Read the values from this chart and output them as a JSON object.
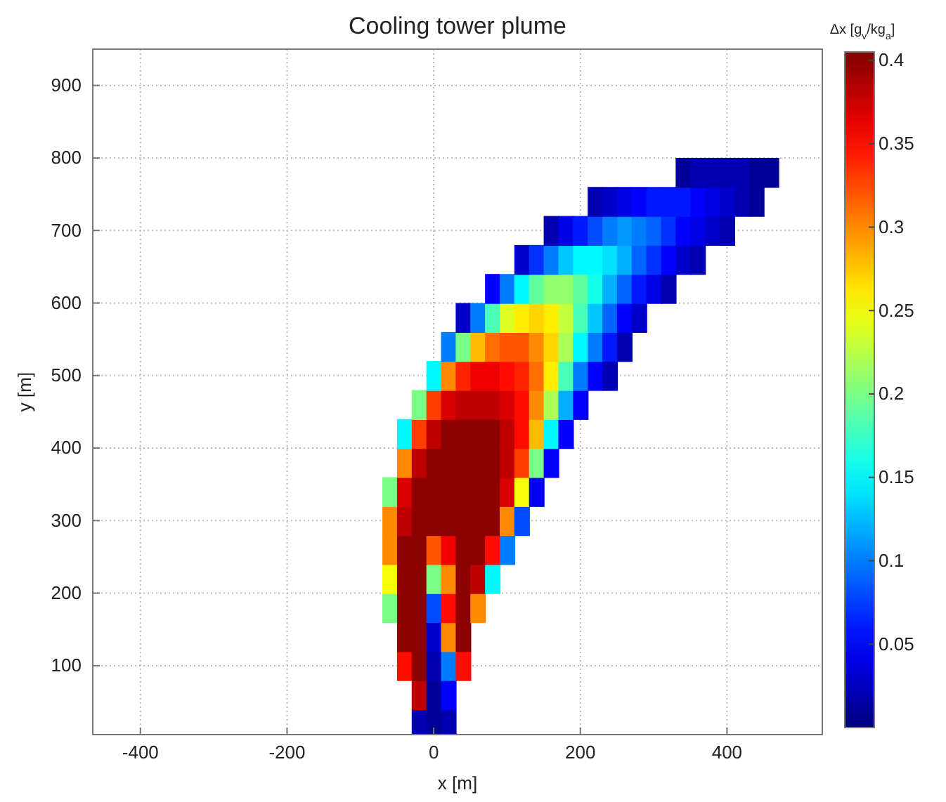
{
  "chart_data": {
    "type": "scatter",
    "title": "Cooling tower plume",
    "xlabel": "x [m]",
    "ylabel": "y [m]",
    "clabel": "Δx [g$_{v}$/kg$_{a}$]",
    "marker": "square",
    "grid": true,
    "xlim": [
      -465,
      530
    ],
    "xticks": [
      -400,
      -200,
      0,
      200,
      400
    ],
    "ylim": [
      5,
      950
    ],
    "yticks": [
      100,
      200,
      300,
      400,
      500,
      600,
      700,
      800,
      900
    ],
    "clim": [
      0,
      0.405
    ],
    "cticks": [
      0.05,
      0.1,
      0.15,
      0.2,
      0.25,
      0.3,
      0.35,
      0.4
    ],
    "x": [
      -20,
      0,
      20,
      -20,
      0,
      20,
      -40,
      -20,
      0,
      20,
      40,
      -40,
      -20,
      0,
      20,
      40,
      -60,
      -40,
      -20,
      0,
      20,
      40,
      60,
      -60,
      -40,
      -20,
      0,
      20,
      40,
      60,
      80,
      -60,
      -40,
      -20,
      0,
      20,
      40,
      60,
      80,
      100,
      -60,
      -40,
      -20,
      0,
      20,
      40,
      60,
      80,
      100,
      120,
      -60,
      -40,
      -20,
      0,
      20,
      40,
      60,
      80,
      100,
      120,
      140,
      -40,
      -20,
      0,
      20,
      40,
      60,
      80,
      100,
      120,
      140,
      160,
      -40,
      -20,
      0,
      20,
      40,
      60,
      80,
      100,
      120,
      140,
      160,
      180,
      -20,
      0,
      20,
      40,
      60,
      80,
      100,
      120,
      140,
      160,
      180,
      200,
      0,
      20,
      40,
      60,
      80,
      100,
      120,
      140,
      160,
      180,
      200,
      220,
      240,
      20,
      40,
      60,
      80,
      100,
      120,
      140,
      160,
      180,
      200,
      220,
      240,
      260,
      40,
      60,
      80,
      100,
      120,
      140,
      160,
      180,
      200,
      220,
      240,
      260,
      280,
      80,
      100,
      120,
      140,
      160,
      180,
      200,
      220,
      240,
      260,
      280,
      300,
      320,
      120,
      140,
      160,
      180,
      200,
      220,
      240,
      260,
      280,
      300,
      320,
      340,
      360,
      160,
      180,
      200,
      220,
      240,
      260,
      280,
      300,
      320,
      340,
      360,
      380,
      400,
      220,
      240,
      260,
      280,
      300,
      320,
      340,
      360,
      380,
      400,
      420,
      440,
      340,
      360,
      380,
      400,
      420,
      440,
      460
    ],
    "values": [
      20,
      20,
      20,
      60,
      60,
      60,
      100,
      100,
      100,
      100,
      100,
      140,
      140,
      140,
      140,
      140,
      180,
      180,
      180,
      180,
      180,
      180,
      180,
      220,
      220,
      220,
      220,
      220,
      220,
      220,
      220,
      260,
      260,
      260,
      260,
      260,
      260,
      260,
      260,
      260,
      300,
      300,
      300,
      300,
      300,
      300,
      300,
      300,
      300,
      300,
      340,
      340,
      340,
      340,
      340,
      340,
      340,
      340,
      340,
      340,
      340,
      380,
      380,
      380,
      380,
      380,
      380,
      380,
      380,
      380,
      380,
      380,
      420,
      420,
      420,
      420,
      420,
      420,
      420,
      420,
      420,
      420,
      420,
      420,
      460,
      460,
      460,
      460,
      460,
      460,
      460,
      460,
      460,
      460,
      460,
      460,
      500,
      500,
      500,
      500,
      500,
      500,
      500,
      500,
      500,
      500,
      500,
      500,
      500,
      540,
      540,
      540,
      540,
      540,
      540,
      540,
      540,
      540,
      540,
      540,
      540,
      540,
      580,
      580,
      580,
      580,
      580,
      580,
      580,
      580,
      580,
      580,
      580,
      580,
      580,
      620,
      620,
      620,
      620,
      620,
      620,
      620,
      620,
      620,
      620,
      620,
      620,
      620,
      660,
      660,
      660,
      660,
      660,
      660,
      660,
      660,
      660,
      660,
      660,
      660,
      660,
      700,
      700,
      700,
      700,
      700,
      700,
      700,
      700,
      700,
      700,
      700,
      700,
      700,
      740,
      740,
      740,
      740,
      740,
      740,
      740,
      740,
      740,
      740,
      740,
      740,
      780,
      780,
      780,
      780,
      780,
      780,
      780
    ],
    "cvalues": [
      0.02,
      0.01,
      0.02,
      0.38,
      0.01,
      0.05,
      0.35,
      0.4,
      0.02,
      0.1,
      0.35,
      0.4,
      0.4,
      0.03,
      0.3,
      0.4,
      0.2,
      0.4,
      0.4,
      0.08,
      0.35,
      0.4,
      0.3,
      0.25,
      0.4,
      0.4,
      0.2,
      0.3,
      0.4,
      0.38,
      0.15,
      0.3,
      0.4,
      0.4,
      0.32,
      0.36,
      0.4,
      0.4,
      0.35,
      0.1,
      0.3,
      0.38,
      0.4,
      0.4,
      0.4,
      0.4,
      0.4,
      0.4,
      0.3,
      0.08,
      0.2,
      0.37,
      0.4,
      0.4,
      0.4,
      0.4,
      0.4,
      0.4,
      0.37,
      0.25,
      0.05,
      0.3,
      0.38,
      0.4,
      0.4,
      0.4,
      0.4,
      0.4,
      0.38,
      0.33,
      0.2,
      0.05,
      0.15,
      0.33,
      0.38,
      0.4,
      0.4,
      0.4,
      0.4,
      0.38,
      0.35,
      0.28,
      0.15,
      0.05,
      0.2,
      0.33,
      0.37,
      0.38,
      0.38,
      0.38,
      0.37,
      0.35,
      0.3,
      0.22,
      0.12,
      0.05,
      0.15,
      0.3,
      0.34,
      0.36,
      0.36,
      0.35,
      0.34,
      0.31,
      0.26,
      0.18,
      0.1,
      0.05,
      0.02,
      0.1,
      0.2,
      0.28,
      0.31,
      0.32,
      0.32,
      0.3,
      0.27,
      0.22,
      0.15,
      0.1,
      0.06,
      0.02,
      0.03,
      0.1,
      0.18,
      0.24,
      0.26,
      0.27,
      0.26,
      0.23,
      0.18,
      0.13,
      0.09,
      0.05,
      0.03,
      0.05,
      0.1,
      0.15,
      0.19,
      0.21,
      0.21,
      0.19,
      0.16,
      0.12,
      0.09,
      0.06,
      0.04,
      0.02,
      0.03,
      0.07,
      0.1,
      0.13,
      0.15,
      0.15,
      0.14,
      0.12,
      0.09,
      0.07,
      0.05,
      0.03,
      0.02,
      0.02,
      0.04,
      0.06,
      0.08,
      0.1,
      0.11,
      0.1,
      0.09,
      0.07,
      0.05,
      0.04,
      0.03,
      0.02,
      0.02,
      0.03,
      0.04,
      0.05,
      0.06,
      0.06,
      0.06,
      0.05,
      0.04,
      0.03,
      0.02,
      0.01,
      0.01,
      0.02,
      0.02,
      0.02,
      0.02,
      0.01,
      0.01
    ]
  }
}
